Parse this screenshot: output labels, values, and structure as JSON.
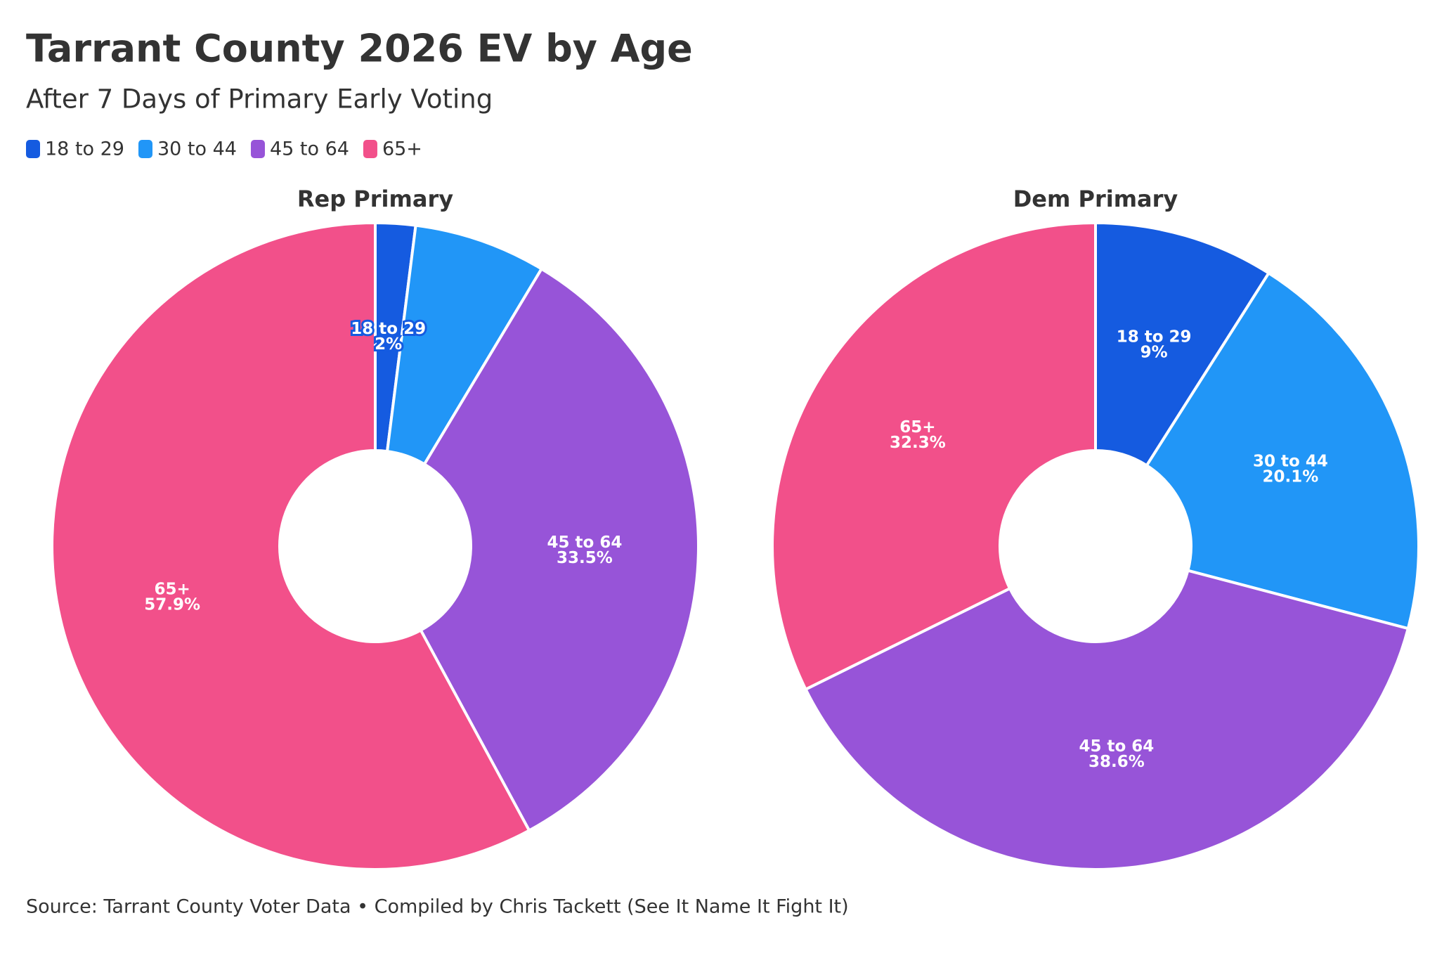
{
  "title": "Tarrant County 2026 EV by Age",
  "subtitle": "After 7 Days of Primary Early Voting",
  "source": "Source: Tarrant County Voter Data • Compiled by Chris Tackett (See It Name It Fight It)",
  "chart_data": [
    {
      "type": "pie",
      "title": "Rep Primary",
      "categories": [
        "18 to 29",
        "30 to 44",
        "45 to 64",
        "65+"
      ],
      "values": [
        2,
        6.6,
        33.5,
        57.9
      ],
      "value_labels": [
        "2%",
        null,
        "33.5%",
        "57.9%"
      ],
      "colors": [
        "#155be0",
        "#2196f7",
        "#9754d8",
        "#f2508a"
      ],
      "donut": true
    },
    {
      "type": "pie",
      "title": "Dem Primary",
      "categories": [
        "18 to 29",
        "30 to 44",
        "45 to 64",
        "65+"
      ],
      "values": [
        9,
        20.1,
        38.6,
        32.3
      ],
      "value_labels": [
        "9%",
        "20.1%",
        "38.6%",
        "32.3%"
      ],
      "colors": [
        "#155be0",
        "#2196f7",
        "#9754d8",
        "#f2508a"
      ],
      "donut": true
    }
  ]
}
